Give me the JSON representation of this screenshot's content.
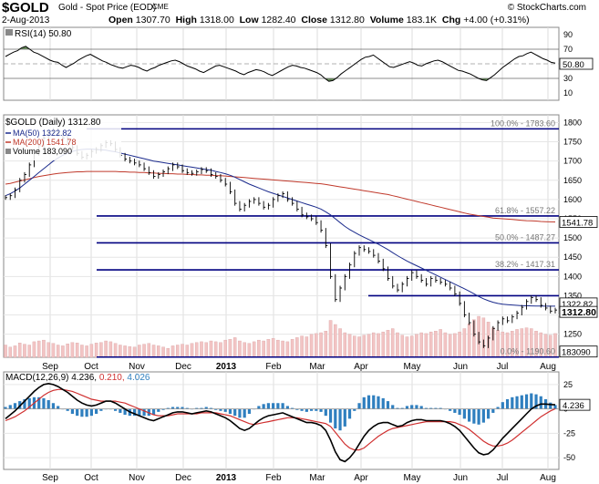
{
  "header": {
    "symbol": "$GOLD",
    "subtitle": "Gold - Spot Price (EOD)",
    "exchange": "CME",
    "brand": "© StockCharts.com",
    "date": "2-Aug-2013",
    "open_label": "Open",
    "open": "1307.70",
    "high_label": "High",
    "high": "1318.00",
    "low_label": "Low",
    "low": "1282.40",
    "close_label": "Close",
    "close": "1312.80",
    "volume_label": "Volume",
    "volume": "183.1K",
    "chg_label": "Chg",
    "chg": "+4.00 (+0.31%)"
  },
  "colors": {
    "price": "#000000",
    "ma50": "#1a2a8c",
    "ma200": "#c0392b",
    "fib": "#000080",
    "hist": "#2f7fbf",
    "rsi_fill": "#4a7a3a",
    "volume": "#f2c4c4"
  },
  "chart_data": [
    {
      "type": "line",
      "panel": "rsi",
      "title": "RSI(14) 50.80",
      "yticks": [
        90,
        70,
        50,
        30,
        10
      ],
      "ylim": [
        0,
        100
      ],
      "reference_lines": [
        70,
        30
      ],
      "last_value_label": "50.80",
      "series": [
        {
          "name": "RSI(14)",
          "values": [
            60,
            63,
            66,
            68,
            72,
            74,
            70,
            66,
            64,
            61,
            58,
            55,
            53,
            52,
            48,
            45,
            48,
            51,
            55,
            58,
            61,
            63,
            60,
            57,
            54,
            52,
            49,
            47,
            45,
            44,
            46,
            48,
            47,
            45,
            42,
            40,
            43,
            45,
            48,
            50,
            52,
            54,
            55,
            53,
            50,
            47,
            45,
            43,
            40,
            38,
            41,
            44,
            47,
            48,
            46,
            44,
            42,
            40,
            37,
            35,
            38,
            40,
            42,
            41,
            39,
            36,
            34,
            37,
            40,
            43,
            46,
            48,
            47,
            45,
            44,
            42,
            40,
            38,
            35,
            30,
            26,
            27,
            31,
            36,
            40,
            44,
            48,
            52,
            56,
            59,
            60,
            62,
            58,
            54,
            50,
            46,
            45,
            47,
            49,
            51,
            53,
            51,
            48,
            47,
            50,
            52,
            54,
            55,
            53,
            50,
            47,
            44,
            41,
            40,
            38,
            36,
            33,
            30,
            28,
            27,
            31,
            35,
            40,
            45,
            49,
            53,
            57,
            60,
            61,
            64,
            66,
            63,
            60,
            57,
            55,
            52,
            51
          ]
        }
      ]
    },
    {
      "type": "line",
      "panel": "price",
      "title": "$GOLD (Daily) 1312.80",
      "legend": [
        "MA(50) 1322.82",
        "MA(200) 1541.78",
        "Volume 183,090"
      ],
      "ylim": [
        1190,
        1820
      ],
      "yticks": [
        1800,
        1750,
        1700,
        1650,
        1600,
        1550,
        1500,
        1450,
        1400,
        1350,
        1300,
        1250
      ],
      "xlabels": [
        "Sep",
        "Oct",
        "Nov",
        "Dec",
        "2013",
        "Feb",
        "Mar",
        "Apr",
        "May",
        "Jun",
        "Jul",
        "Aug"
      ],
      "right_tags": [
        "1541.78",
        "1322.82",
        "1312.80",
        "183090"
      ],
      "fib_levels": [
        {
          "value": 1783.6,
          "label": "100.0% - 1783.60"
        },
        {
          "value": 1557.22,
          "label": "61.8% - 1557.22"
        },
        {
          "value": 1487.27,
          "label": "50.0% - 1487.27"
        },
        {
          "value": 1417.31,
          "label": "38.2% - 1417.31"
        },
        {
          "value": 1350,
          "label": ""
        },
        {
          "value": 1190.6,
          "label": "0.0% - 1190.60"
        }
      ],
      "series": [
        {
          "name": "$GOLD",
          "values": [
            1605,
            1610,
            1625,
            1650,
            1665,
            1690,
            1720,
            1740,
            1760,
            1775,
            1780,
            1770,
            1760,
            1745,
            1735,
            1720,
            1710,
            1715,
            1725,
            1730,
            1740,
            1748,
            1745,
            1730,
            1715,
            1705,
            1700,
            1695,
            1690,
            1680,
            1670,
            1660,
            1665,
            1672,
            1680,
            1690,
            1685,
            1675,
            1670,
            1668,
            1672,
            1678,
            1675,
            1665,
            1660,
            1650,
            1640,
            1620,
            1590,
            1575,
            1585,
            1595,
            1600,
            1590,
            1580,
            1585,
            1600,
            1610,
            1615,
            1600,
            1590,
            1575,
            1560,
            1555,
            1550,
            1540,
            1520,
            1480,
            1400,
            1340,
            1370,
            1400,
            1430,
            1460,
            1475,
            1470,
            1465,
            1455,
            1440,
            1420,
            1395,
            1375,
            1365,
            1380,
            1395,
            1410,
            1400,
            1390,
            1380,
            1395,
            1390,
            1385,
            1380,
            1370,
            1355,
            1330,
            1300,
            1280,
            1250,
            1230,
            1220,
            1240,
            1265,
            1280,
            1290,
            1285,
            1295,
            1305,
            1320,
            1335,
            1345,
            1340,
            1325,
            1318,
            1310,
            1312.8
          ]
        },
        {
          "name": "MA(50)",
          "values": [
            1610,
            1615,
            1622,
            1630,
            1640,
            1650,
            1660,
            1670,
            1680,
            1690,
            1700,
            1708,
            1715,
            1720,
            1725,
            1728,
            1730,
            1731,
            1731,
            1730,
            1729,
            1728,
            1726,
            1724,
            1721,
            1718,
            1715,
            1712,
            1709,
            1706,
            1703,
            1700,
            1698,
            1696,
            1694,
            1692,
            1690,
            1688,
            1686,
            1684,
            1682,
            1680,
            1678,
            1676,
            1673,
            1670,
            1667,
            1663,
            1658,
            1652,
            1646,
            1640,
            1635,
            1630,
            1625,
            1620,
            1616,
            1612,
            1608,
            1604,
            1600,
            1596,
            1592,
            1588,
            1584,
            1580,
            1575,
            1568,
            1560,
            1550,
            1540,
            1530,
            1522,
            1515,
            1508,
            1502,
            1496,
            1490,
            1484,
            1477,
            1470,
            1462,
            1454,
            1447,
            1440,
            1434,
            1428,
            1422,
            1416,
            1410,
            1404,
            1398,
            1392,
            1386,
            1380,
            1374,
            1368,
            1362,
            1355,
            1348,
            1342,
            1337,
            1333,
            1330,
            1328,
            1327,
            1326,
            1325,
            1324,
            1324,
            1323.5,
            1323,
            1323,
            1322.9,
            1322.85,
            1322.82
          ]
        },
        {
          "name": "MA(200)",
          "values": [
            1640,
            1642,
            1645,
            1648,
            1651,
            1654,
            1657,
            1660,
            1662,
            1664,
            1666,
            1668,
            1669,
            1670,
            1671,
            1672,
            1672,
            1673,
            1673,
            1673,
            1673,
            1673,
            1673,
            1673,
            1672,
            1672,
            1671,
            1671,
            1670,
            1670,
            1669,
            1669,
            1668,
            1668,
            1667,
            1667,
            1666,
            1666,
            1665,
            1665,
            1664,
            1664,
            1663,
            1663,
            1662,
            1662,
            1661,
            1660,
            1659,
            1658,
            1657,
            1656,
            1655,
            1654,
            1653,
            1652,
            1651,
            1650,
            1649,
            1648,
            1647,
            1646,
            1645,
            1644,
            1643,
            1642,
            1641,
            1639,
            1637,
            1635,
            1633,
            1631,
            1629,
            1627,
            1625,
            1623,
            1621,
            1619,
            1617,
            1615,
            1613,
            1610,
            1607,
            1604,
            1601,
            1598,
            1595,
            1592,
            1589,
            1586,
            1583,
            1580,
            1577,
            1574,
            1571,
            1568,
            1565,
            1562,
            1560,
            1558,
            1556,
            1554,
            1552,
            1551,
            1550,
            1549,
            1548,
            1547,
            1546,
            1545,
            1544.5,
            1544,
            1543,
            1542.5,
            1542,
            1541.78
          ]
        }
      ],
      "volume": [
        30,
        25,
        28,
        35,
        32,
        30,
        38,
        40,
        42,
        36,
        34,
        30,
        28,
        33,
        36,
        35,
        30,
        28,
        32,
        35,
        36,
        40,
        38,
        34,
        30,
        28,
        26,
        25,
        30,
        32,
        34,
        30,
        28,
        25,
        22,
        28,
        30,
        32,
        30,
        34,
        36,
        38,
        36,
        40,
        38,
        36,
        42,
        44,
        48,
        40,
        36,
        34,
        38,
        42,
        40,
        44,
        46,
        42,
        40,
        38,
        44,
        48,
        52,
        50,
        56,
        58,
        60,
        64,
        90,
        80,
        70,
        60,
        56,
        52,
        50,
        54,
        56,
        60,
        58,
        62,
        66,
        70,
        60,
        54,
        50,
        52,
        56,
        60,
        58,
        62,
        64,
        68,
        60,
        56,
        58,
        62,
        70,
        82,
        92,
        100,
        96,
        86,
        72,
        66,
        62,
        60,
        64,
        68,
        70,
        72,
        70,
        64,
        60,
        56,
        54,
        58
      ]
    },
    {
      "type": "line",
      "panel": "macd",
      "title": "MACD(12,26,9) 4.236, 0.210, 4.026",
      "yticks": [
        25,
        0,
        -25,
        -50
      ],
      "ylim": [
        -62,
        38
      ],
      "right_tags": [
        "4.236"
      ],
      "series": [
        {
          "name": "MACD",
          "values": [
            -10,
            -6,
            -2,
            3,
            8,
            13,
            18,
            22,
            25,
            26,
            25,
            23,
            20,
            17,
            13,
            9,
            6,
            4,
            3,
            4,
            6,
            8,
            8,
            6,
            3,
            0,
            -3,
            -5,
            -7,
            -9,
            -11,
            -12,
            -10,
            -8,
            -6,
            -4,
            -3,
            -3,
            -4,
            -5,
            -4,
            -3,
            -2,
            -3,
            -5,
            -7,
            -9,
            -12,
            -16,
            -20,
            -22,
            -20,
            -16,
            -12,
            -9,
            -7,
            -6,
            -5,
            -4,
            -6,
            -8,
            -10,
            -12,
            -14,
            -14,
            -15,
            -17,
            -22,
            -32,
            -44,
            -52,
            -54,
            -50,
            -44,
            -36,
            -28,
            -22,
            -18,
            -15,
            -14,
            -14,
            -16,
            -18,
            -17,
            -14,
            -12,
            -11,
            -11,
            -12,
            -12,
            -12,
            -12,
            -13,
            -15,
            -18,
            -22,
            -28,
            -34,
            -40,
            -45,
            -47,
            -46,
            -42,
            -36,
            -30,
            -25,
            -20,
            -15,
            -10,
            -5,
            0,
            3,
            5,
            5,
            4.5,
            4.236
          ]
        },
        {
          "name": "Signal",
          "values": [
            -12,
            -10,
            -8,
            -5,
            -2,
            2,
            6,
            10,
            14,
            17,
            19,
            20,
            20,
            19,
            18,
            16,
            14,
            12,
            10,
            9,
            8,
            8,
            8,
            8,
            7,
            6,
            4,
            2,
            0,
            -2,
            -4,
            -6,
            -7,
            -7,
            -7,
            -6,
            -5,
            -5,
            -5,
            -5,
            -5,
            -4,
            -4,
            -4,
            -4,
            -5,
            -6,
            -7,
            -9,
            -11,
            -13,
            -15,
            -16,
            -15,
            -14,
            -13,
            -12,
            -11,
            -10,
            -9,
            -9,
            -9,
            -10,
            -11,
            -12,
            -13,
            -14,
            -15,
            -18,
            -24,
            -30,
            -36,
            -40,
            -42,
            -42,
            -40,
            -36,
            -32,
            -28,
            -25,
            -22,
            -20,
            -19,
            -18,
            -17,
            -16,
            -15,
            -14,
            -13,
            -13,
            -13,
            -13,
            -13,
            -13,
            -14,
            -16,
            -18,
            -21,
            -25,
            -29,
            -33,
            -36,
            -38,
            -38,
            -37,
            -35,
            -32,
            -28,
            -24,
            -20,
            -16,
            -12,
            -8,
            -5,
            -2,
            0.21
          ]
        },
        {
          "name": "Histogram",
          "values": [
            2,
            4,
            6,
            8,
            10,
            11,
            12,
            12,
            11,
            9,
            6,
            3,
            0,
            -2,
            -5,
            -7,
            -8,
            -8,
            -7,
            -5,
            -2,
            0,
            0,
            -2,
            -4,
            -6,
            -7,
            -7,
            -7,
            -7,
            -7,
            -6,
            -3,
            -1,
            1,
            2,
            2,
            2,
            1,
            0,
            1,
            1,
            2,
            1,
            -1,
            -2,
            -3,
            -5,
            -7,
            -9,
            -9,
            -5,
            0,
            3,
            5,
            6,
            6,
            6,
            6,
            3,
            1,
            -1,
            -2,
            -3,
            -2,
            -2,
            -3,
            -7,
            -14,
            -20,
            -22,
            -18,
            -10,
            -2,
            6,
            12,
            14,
            14,
            13,
            11,
            8,
            4,
            1,
            1,
            3,
            4,
            4,
            3,
            1,
            1,
            1,
            1,
            0,
            -2,
            -4,
            -6,
            -10,
            -13,
            -15,
            -16,
            -14,
            -10,
            -4,
            2,
            7,
            10,
            12,
            13,
            14,
            15,
            16,
            15,
            13,
            10,
            6.5,
            4.026
          ]
        }
      ],
      "xlabels": [
        "Sep",
        "Oct",
        "Nov",
        "Dec",
        "2013",
        "Feb",
        "Mar",
        "Apr",
        "May",
        "Jun",
        "Jul",
        "Aug"
      ]
    }
  ]
}
